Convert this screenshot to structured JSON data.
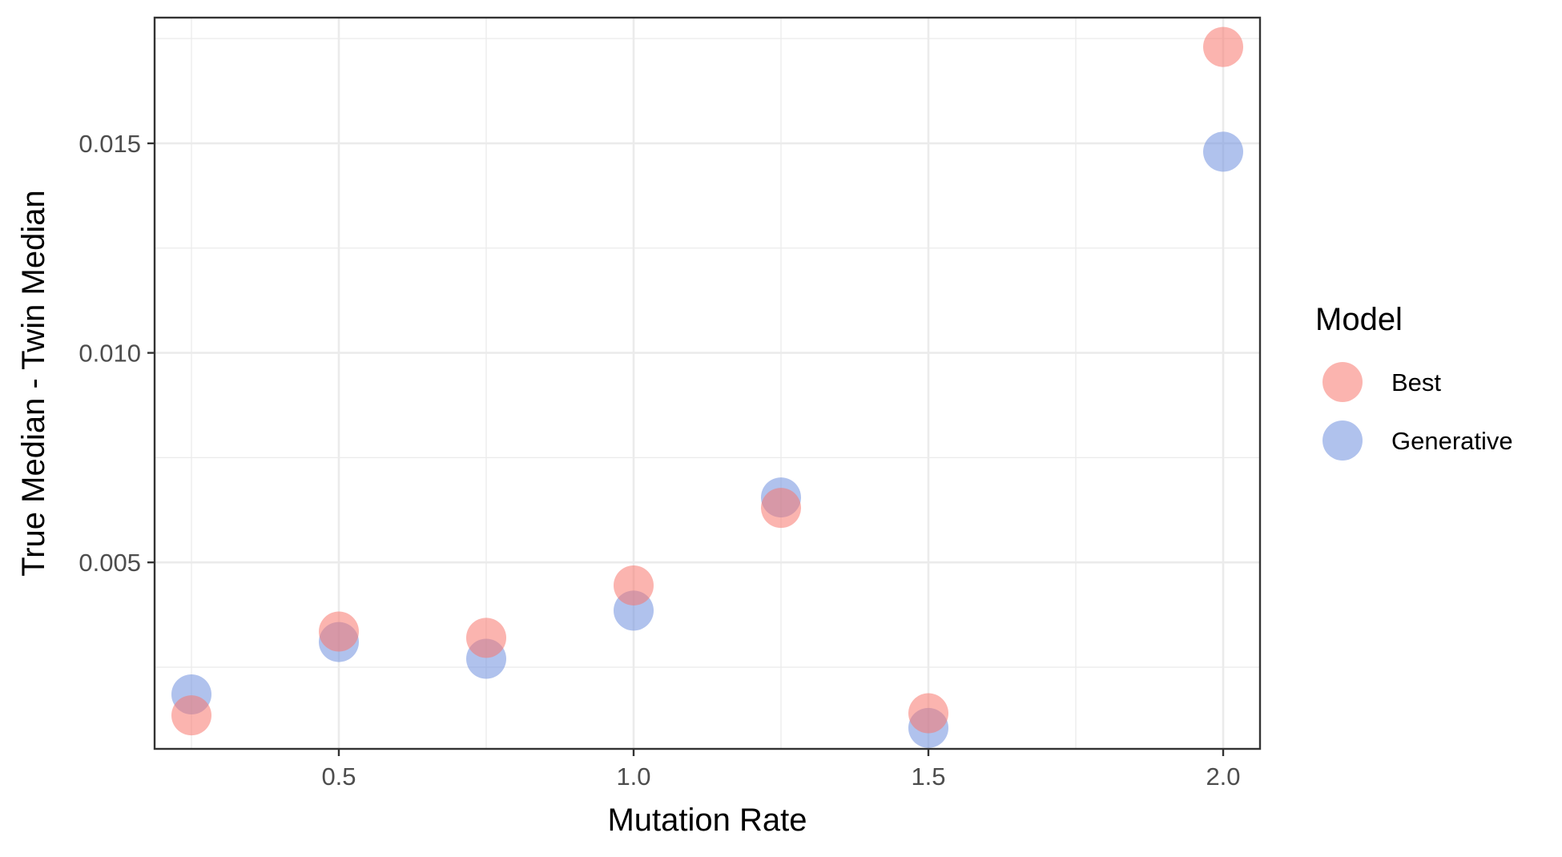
{
  "chart_data": {
    "type": "scatter",
    "title": "",
    "xlabel": "Mutation Rate",
    "ylabel": "True Median - Twin Median",
    "xlim": [
      0.1875,
      2.0625
    ],
    "ylim": [
      0.00055,
      0.018
    ],
    "x_ticks": [
      0.5,
      1.0,
      1.5,
      2.0
    ],
    "x_tick_labels": [
      "0.5",
      "1.0",
      "1.5",
      "2.0"
    ],
    "x_minor_ticks": [
      0.25,
      0.75,
      1.25,
      1.75
    ],
    "y_ticks": [
      0.005,
      0.01,
      0.015
    ],
    "y_tick_labels": [
      "0.005",
      "0.010",
      "0.015"
    ],
    "y_minor_ticks": [
      0.0025,
      0.0075,
      0.0125,
      0.0175
    ],
    "grid": true,
    "legend": {
      "title": "Model",
      "position": "right"
    },
    "series": [
      {
        "name": "Generative",
        "color": "#6f8fdf",
        "x": [
          0.25,
          0.5,
          0.75,
          1.0,
          1.25,
          1.5,
          2.0
        ],
        "y": [
          0.00185,
          0.0031,
          0.0027,
          0.00385,
          0.00655,
          0.00105,
          0.0148
        ]
      },
      {
        "name": "Best",
        "color": "#f8766d",
        "x": [
          0.25,
          0.5,
          0.75,
          1.0,
          1.25,
          1.5,
          2.0
        ],
        "y": [
          0.00135,
          0.00335,
          0.0032,
          0.00445,
          0.0063,
          0.0014,
          0.0173
        ]
      }
    ]
  }
}
